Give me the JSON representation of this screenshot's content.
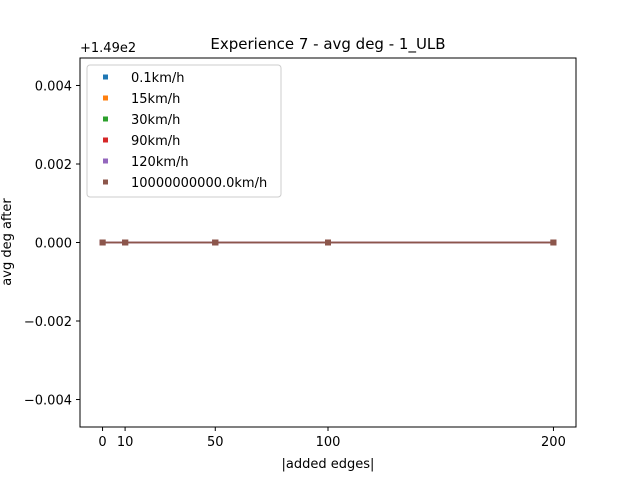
{
  "chart_data": {
    "type": "line",
    "title": "Experience 7 - avg deg - 1_ULB",
    "xlabel": "|added edges|",
    "ylabel": "avg deg after",
    "offset_label": "+1.49e2",
    "x": [
      0,
      10,
      50,
      100,
      200
    ],
    "x_ticks": [
      0,
      10,
      50,
      100,
      200
    ],
    "x_tick_labels": [
      "0",
      "10",
      "50",
      "100",
      "200"
    ],
    "xlim": [
      -10,
      210
    ],
    "y_offset": 149,
    "y_ticks": [
      -0.004,
      -0.002,
      0.0,
      0.002,
      0.004
    ],
    "y_tick_labels": [
      "−0.004",
      "−0.002",
      "0.000",
      "0.002",
      "0.004"
    ],
    "ylim": [
      -0.0047,
      0.0047
    ],
    "grid": false,
    "legend_position": "upper-left",
    "series": [
      {
        "name": "0.1km/h",
        "color": "#1f77b4",
        "values": [
          149,
          149,
          149,
          149,
          149
        ]
      },
      {
        "name": "15km/h",
        "color": "#ff7f0e",
        "values": [
          149,
          149,
          149,
          149,
          149
        ]
      },
      {
        "name": "30km/h",
        "color": "#2ca02c",
        "values": [
          149,
          149,
          149,
          149,
          149
        ]
      },
      {
        "name": "90km/h",
        "color": "#d62728",
        "values": [
          149,
          149,
          149,
          149,
          149
        ]
      },
      {
        "name": "120km/h",
        "color": "#9467bd",
        "values": [
          149,
          149,
          149,
          149,
          149
        ]
      },
      {
        "name": "10000000000.0km/h",
        "color": "#8c564b",
        "values": [
          149,
          149,
          149,
          149,
          149
        ]
      }
    ]
  }
}
